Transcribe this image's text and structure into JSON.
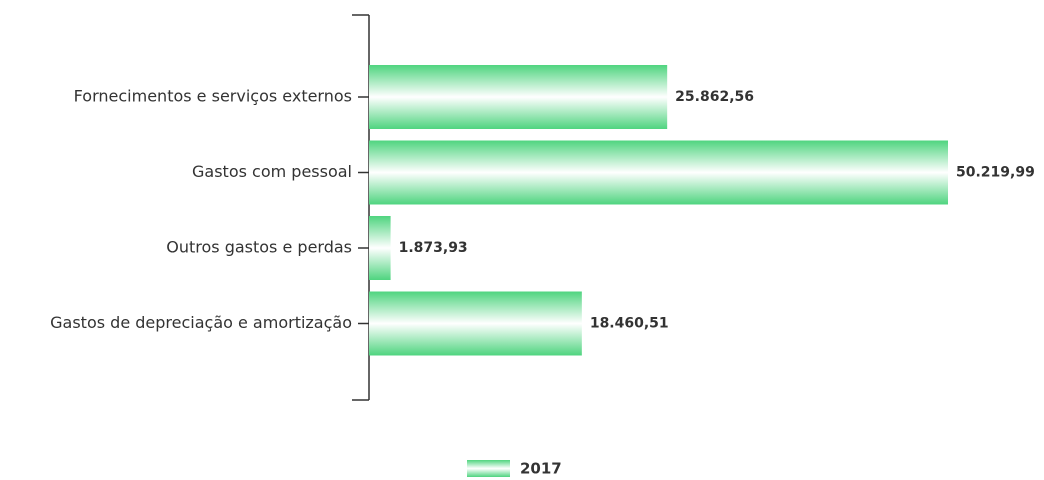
{
  "chart_data": {
    "type": "bar",
    "orientation": "horizontal",
    "categories": [
      "Fornecimentos e serviços externos",
      "Gastos com pessoal",
      "Outros gastos e perdas",
      "Gastos de depreciação e amortização"
    ],
    "series": [
      {
        "name": "2017",
        "color": "#4fd47f",
        "values": [
          25862.56,
          50219.99,
          1873.93,
          18460.51
        ],
        "value_labels": [
          "25.862,56",
          "50.219,99",
          "1.873,93",
          "18.460,51"
        ]
      }
    ],
    "legend": "bottom"
  }
}
